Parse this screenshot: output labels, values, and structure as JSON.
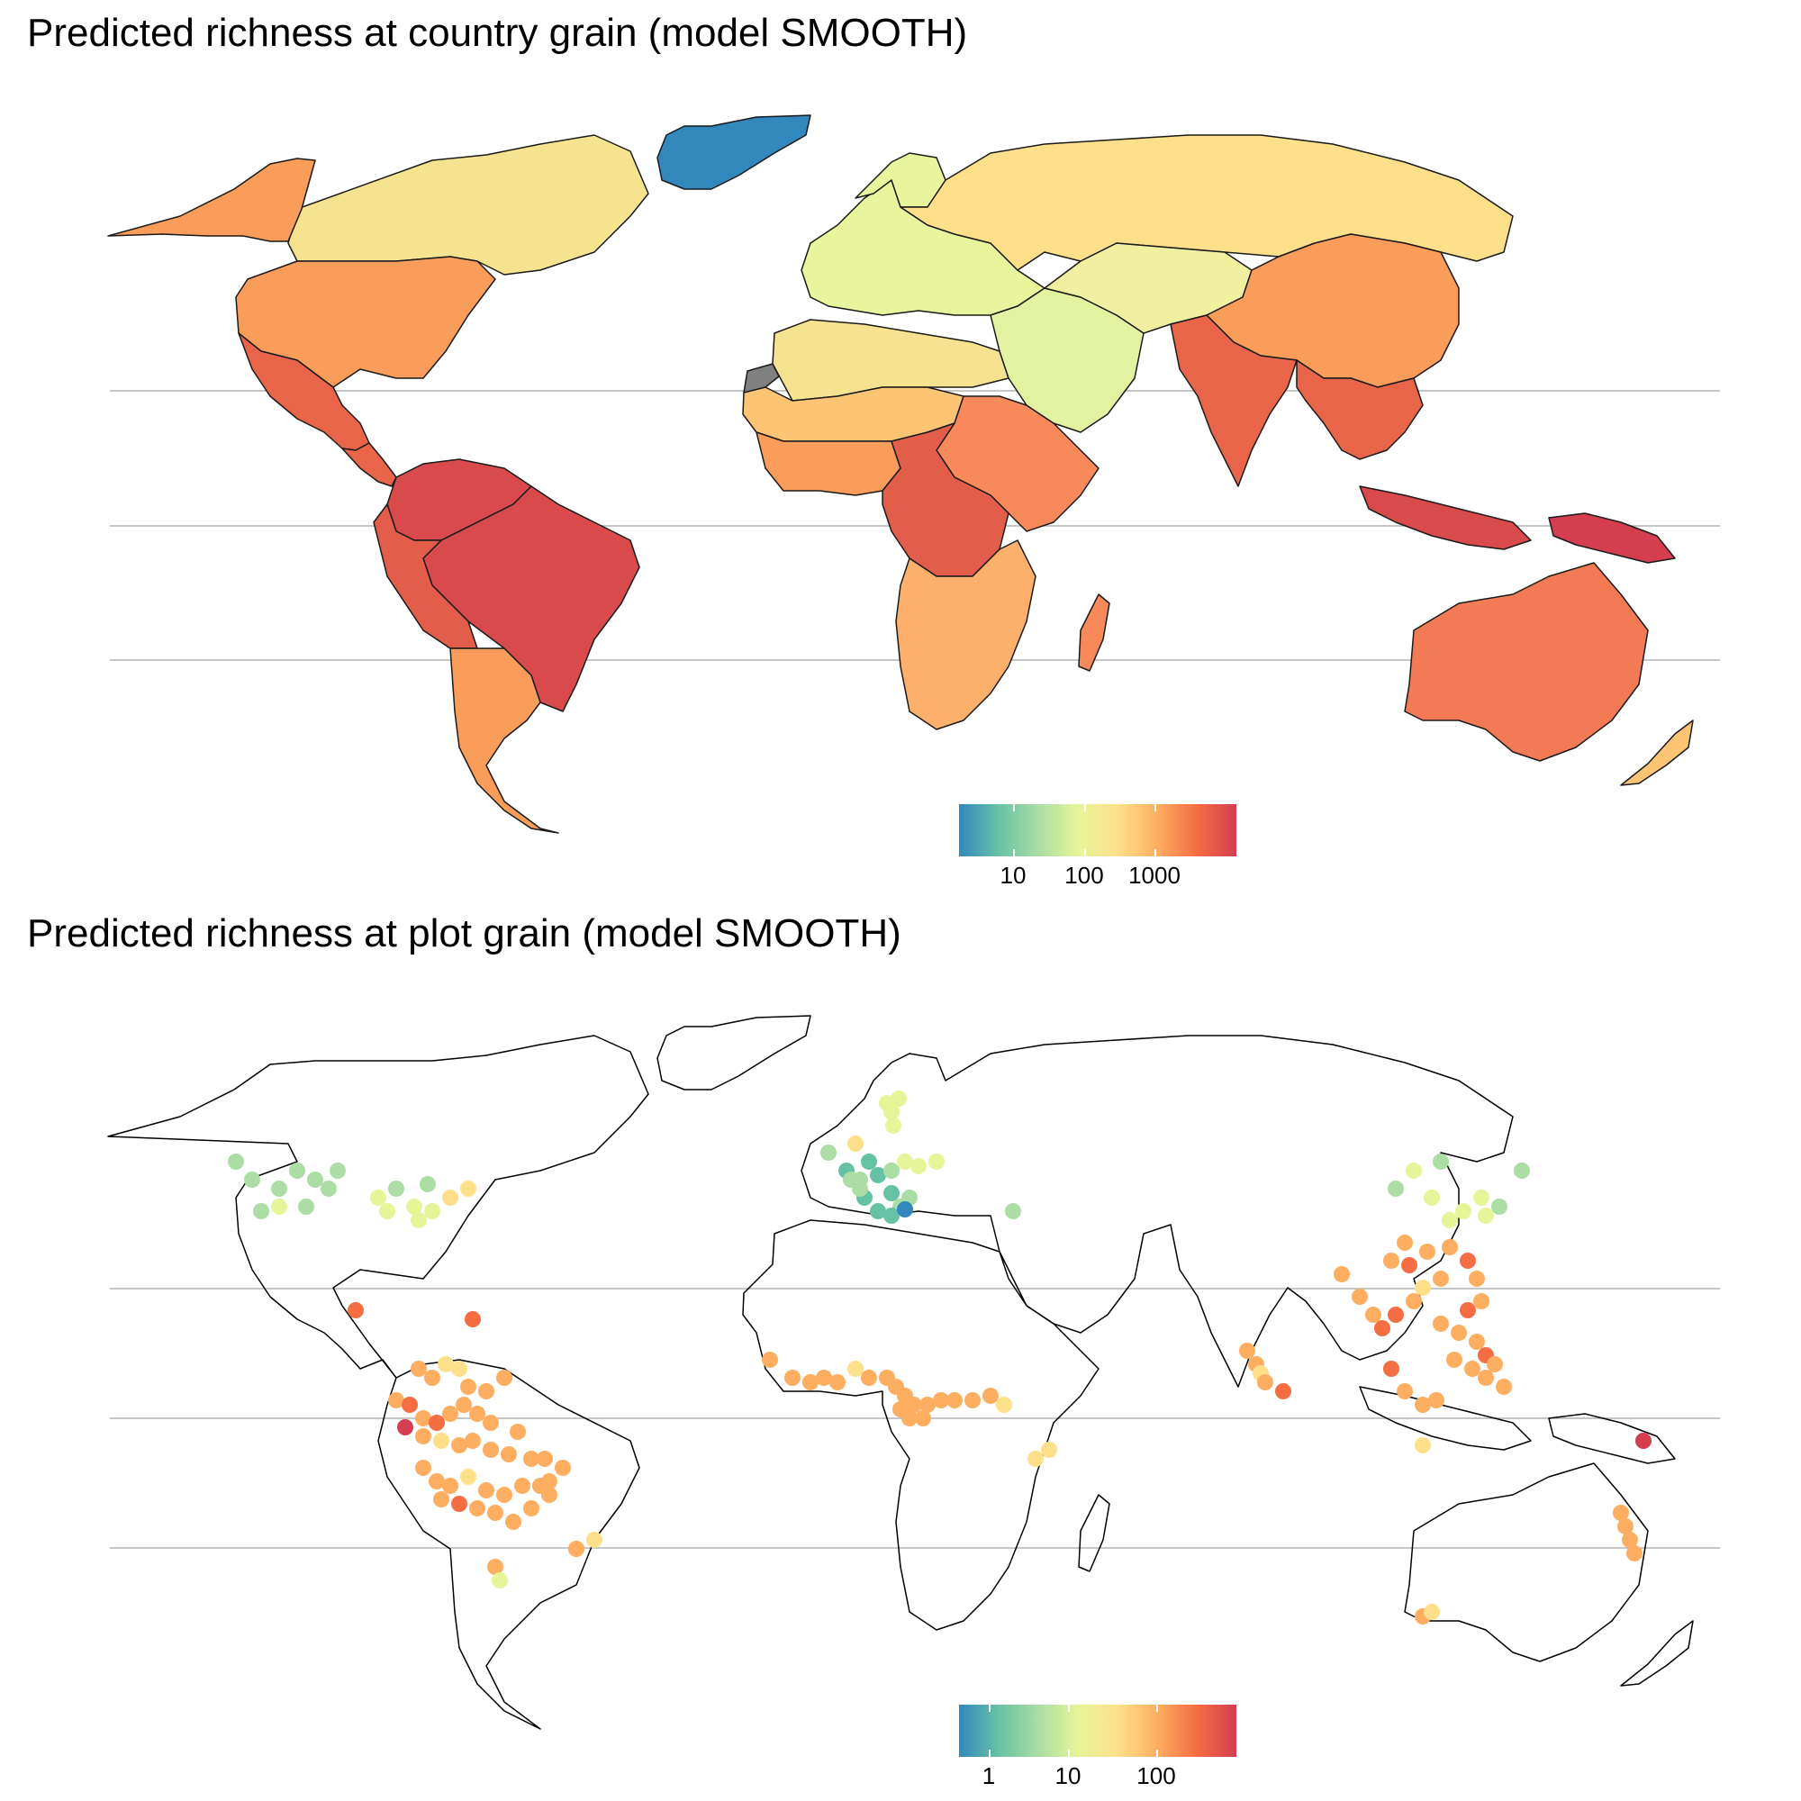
{
  "panels": [
    {
      "title": "Predicted richness at country grain (model SMOOTH)",
      "legend": {
        "labels": [
          "10",
          "100",
          "1000"
        ],
        "palette": [
          "#3288bd",
          "#66c2a5",
          "#abdda4",
          "#e6f598",
          "#fee08b",
          "#fdae61",
          "#f46d43",
          "#d53e4f"
        ]
      },
      "regions": [
        {
          "name": "Greenland",
          "color": "#3288bd"
        },
        {
          "name": "Canada",
          "color": "#f6e38f"
        },
        {
          "name": "Alaska",
          "color": "#fa9d5a"
        },
        {
          "name": "USA",
          "color": "#fa9d5a"
        },
        {
          "name": "Mexico",
          "color": "#e8654a"
        },
        {
          "name": "Central America",
          "color": "#e8654a"
        },
        {
          "name": "Colombia/Venezuela",
          "color": "#d94a4c"
        },
        {
          "name": "Brazil",
          "color": "#d94a4c"
        },
        {
          "name": "Peru/Bolivia",
          "color": "#e25e4a"
        },
        {
          "name": "Argentina/Chile",
          "color": "#fa9d5a"
        },
        {
          "name": "Western Sahara",
          "color": "#808080"
        },
        {
          "name": "North Africa",
          "color": "#f6e38f"
        },
        {
          "name": "Sahel",
          "color": "#fdc474"
        },
        {
          "name": "West Africa",
          "color": "#fa9d5a"
        },
        {
          "name": "Sudan/Ethiopia",
          "color": "#f7895a"
        },
        {
          "name": "Central Africa",
          "color": "#e25e4a"
        },
        {
          "name": "Southern Africa",
          "color": "#fdb06b"
        },
        {
          "name": "Madagascar",
          "color": "#f7895a"
        },
        {
          "name": "Europe",
          "color": "#e9f59d"
        },
        {
          "name": "Russia",
          "color": "#fee08b"
        },
        {
          "name": "Middle East",
          "color": "#e2f2a0"
        },
        {
          "name": "Central Asia",
          "color": "#f0f0a0"
        },
        {
          "name": "China",
          "color": "#fa9d5a"
        },
        {
          "name": "India",
          "color": "#e8654a"
        },
        {
          "name": "Southeast Asia",
          "color": "#e8654a"
        },
        {
          "name": "Indonesia",
          "color": "#d94a4c"
        },
        {
          "name": "New Guinea",
          "color": "#d53e4f"
        },
        {
          "name": "Australia",
          "color": "#f27b55"
        },
        {
          "name": "New Zealand",
          "color": "#fdc474"
        }
      ]
    },
    {
      "title": "Predicted richness at plot grain (model SMOOTH)",
      "legend": {
        "labels": [
          "1",
          "10",
          "100"
        ],
        "palette": [
          "#3288bd",
          "#66c2a5",
          "#abdda4",
          "#e6f598",
          "#fee08b",
          "#fdae61",
          "#f46d43",
          "#d53e4f"
        ]
      }
    }
  ]
}
